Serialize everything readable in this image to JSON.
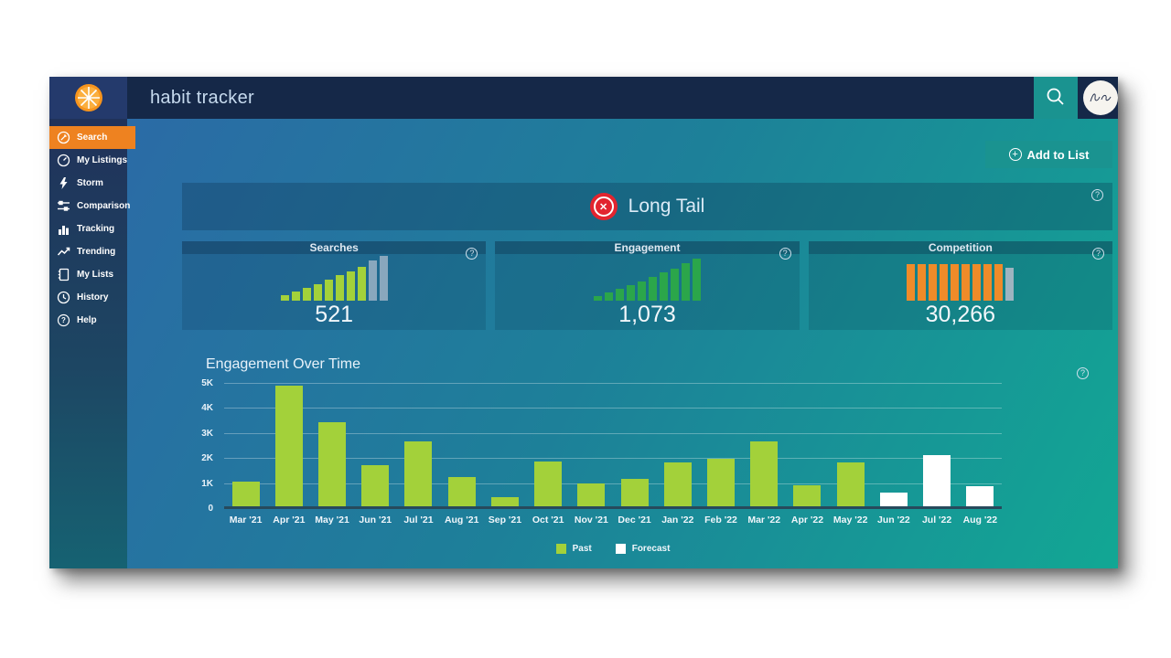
{
  "header": {
    "title": "habit tracker"
  },
  "sidebar": {
    "items": [
      {
        "label": "Search",
        "icon": "search-icon",
        "active": true
      },
      {
        "label": "My Listings",
        "icon": "gauge-icon",
        "active": false
      },
      {
        "label": "Storm",
        "icon": "lightning-icon",
        "active": false
      },
      {
        "label": "Comparison",
        "icon": "sliders-icon",
        "active": false
      },
      {
        "label": "Tracking",
        "icon": "bar-chart-icon",
        "active": false
      },
      {
        "label": "Trending",
        "icon": "trend-line-icon",
        "active": false
      },
      {
        "label": "My Lists",
        "icon": "notebook-icon",
        "active": false
      },
      {
        "label": "History",
        "icon": "clock-icon",
        "active": false
      },
      {
        "label": "Help",
        "icon": "question-icon",
        "active": false
      }
    ]
  },
  "toolbar": {
    "add_to_list_label": "Add to List"
  },
  "banner": {
    "label": "Long Tail",
    "status_color": "#e2242f"
  },
  "stat_cards": [
    {
      "title": "Searches",
      "value": "521",
      "chart": {
        "type": "mini-bar",
        "bars": [
          {
            "pct": 12,
            "color": "#a3d13a"
          },
          {
            "pct": 20,
            "color": "#a3d13a"
          },
          {
            "pct": 27,
            "color": "#a3d13a"
          },
          {
            "pct": 36,
            "color": "#a3d13a"
          },
          {
            "pct": 45,
            "color": "#a3d13a"
          },
          {
            "pct": 54,
            "color": "#a3d13a"
          },
          {
            "pct": 63,
            "color": "#a3d13a"
          },
          {
            "pct": 72,
            "color": "#a3d13a"
          },
          {
            "pct": 86,
            "color": "#89a7bd"
          },
          {
            "pct": 96,
            "color": "#89a7bd"
          }
        ]
      }
    },
    {
      "title": "Engagement",
      "value": "1,073",
      "chart": {
        "type": "mini-bar",
        "bars": [
          {
            "pct": 10,
            "color": "#2ba64a"
          },
          {
            "pct": 17,
            "color": "#2ba64a"
          },
          {
            "pct": 25,
            "color": "#2ba64a"
          },
          {
            "pct": 33,
            "color": "#2ba64a"
          },
          {
            "pct": 42,
            "color": "#2ba64a"
          },
          {
            "pct": 51,
            "color": "#2ba64a"
          },
          {
            "pct": 60,
            "color": "#2ba64a"
          },
          {
            "pct": 69,
            "color": "#2ba64a"
          },
          {
            "pct": 80,
            "color": "#2ba64a"
          },
          {
            "pct": 90,
            "color": "#2ba64a"
          }
        ]
      }
    },
    {
      "title": "Competition",
      "value": "30,266",
      "chart": {
        "type": "mini-bar",
        "bars": [
          {
            "pct": 78,
            "color": "#ef8b29"
          },
          {
            "pct": 78,
            "color": "#ef8b29"
          },
          {
            "pct": 78,
            "color": "#ef8b29"
          },
          {
            "pct": 78,
            "color": "#ef8b29"
          },
          {
            "pct": 78,
            "color": "#ef8b29"
          },
          {
            "pct": 78,
            "color": "#ef8b29"
          },
          {
            "pct": 78,
            "color": "#ef8b29"
          },
          {
            "pct": 78,
            "color": "#ef8b29"
          },
          {
            "pct": 78,
            "color": "#ef8b29"
          },
          {
            "pct": 70,
            "color": "#9eb4c0"
          }
        ]
      }
    }
  ],
  "chart_data": {
    "type": "bar",
    "title": "Engagement Over Time",
    "categories": [
      "Mar '21",
      "Apr '21",
      "May '21",
      "Jun '21",
      "Jul '21",
      "Aug '21",
      "Sep '21",
      "Oct '21",
      "Nov '21",
      "Dec '21",
      "Jan '22",
      "Feb '22",
      "Mar '22",
      "Apr '22",
      "May '22",
      "Jun '22",
      "Jul '22",
      "Aug '22"
    ],
    "series": [
      {
        "name": "Past",
        "color": "#a3d13a",
        "values": [
          1000,
          4800,
          3350,
          1650,
          2600,
          1150,
          350,
          1800,
          900,
          1100,
          1750,
          1900,
          2600,
          850,
          1750,
          null,
          null,
          null
        ]
      },
      {
        "name": "Forecast",
        "color": "#ffffff",
        "values": [
          null,
          null,
          null,
          null,
          null,
          null,
          null,
          null,
          null,
          null,
          null,
          null,
          null,
          null,
          null,
          550,
          2050,
          800
        ]
      }
    ],
    "ylim": [
      0,
      5000
    ],
    "yticks": [
      {
        "label": "0",
        "value": 0
      },
      {
        "label": "1K",
        "value": 1000
      },
      {
        "label": "2K",
        "value": 2000
      },
      {
        "label": "3K",
        "value": 3000
      },
      {
        "label": "4K",
        "value": 4000
      },
      {
        "label": "5K",
        "value": 5000
      }
    ],
    "grid": true,
    "legend_position": "bottom"
  },
  "legend": [
    {
      "label": "Past",
      "color": "#a3d13a"
    },
    {
      "label": "Forecast",
      "color": "#ffffff"
    }
  ],
  "colors": {
    "accent_orange": "#ee8220",
    "accent_teal": "#1a9390",
    "header_navy": "#152848"
  }
}
